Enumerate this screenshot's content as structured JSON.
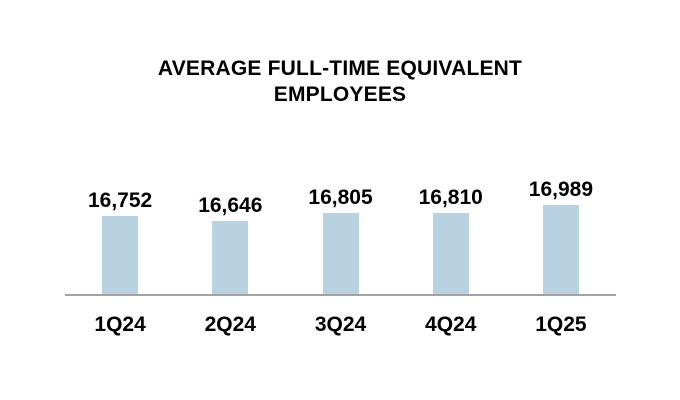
{
  "chart_data": {
    "type": "bar",
    "title": "AVERAGE FULL-TIME EQUIVALENT EMPLOYEES",
    "title_lines": [
      "AVERAGE FULL-TIME EQUIVALENT",
      "EMPLOYEES"
    ],
    "categories": [
      "1Q24",
      "2Q24",
      "3Q24",
      "4Q24",
      "1Q25"
    ],
    "values": [
      16752,
      16646,
      16805,
      16810,
      16989
    ],
    "value_labels": [
      "16,752",
      "16,646",
      "16,805",
      "16,810",
      "16,989"
    ],
    "xlabel": "",
    "ylabel": "",
    "ylim": [
      15000,
      17200
    ],
    "grid": false,
    "legend": false,
    "colors": {
      "bar_fill": "#b8d2e2",
      "axis_line": "#a3a3a3",
      "text": "#000000",
      "background": "#ffffff"
    }
  }
}
